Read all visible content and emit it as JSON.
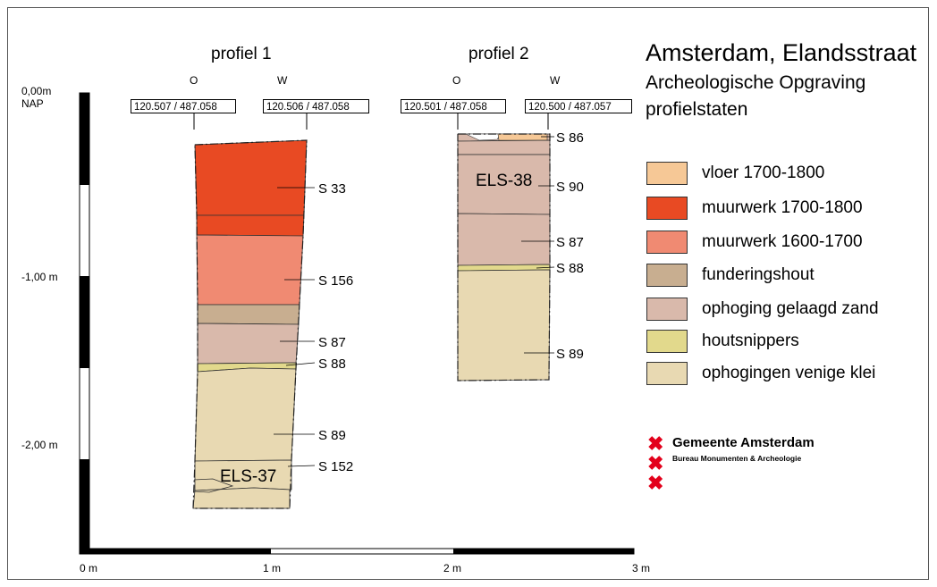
{
  "title": {
    "line1": "Amsterdam, Elandsstraat",
    "line2": "Archeologische Opgraving",
    "line3": "profielstaten"
  },
  "depth_scale": {
    "top_label": "0,00m",
    "top_sublabel": "NAP",
    "mid_label": "-1,00 m",
    "low_label": "-2,00 m"
  },
  "width_scale": {
    "labels": [
      "0 m",
      "1 m",
      "2 m",
      "3 m"
    ]
  },
  "profiles": [
    {
      "title": "profiel 1",
      "orientation_left": "O",
      "orientation_right": "W",
      "coord_left": "120.507 / 487.058",
      "coord_right": "120.506 / 487.058",
      "tag": "ELS-37",
      "labels": [
        "S 33",
        "S 156",
        "S 87",
        "S 88",
        "S 89",
        "S 152"
      ]
    },
    {
      "title": "profiel 2",
      "orientation_left": "O",
      "orientation_right": "W",
      "coord_left": "120.501 / 487.058",
      "coord_right": "120.500 / 487.057",
      "tag": "ELS-38",
      "labels": [
        "S 86",
        "S 90",
        "S 87",
        "S 88",
        "S 89"
      ]
    }
  ],
  "legend": [
    {
      "label": "vloer 1700-1800",
      "color": "#f6c896"
    },
    {
      "label": "muurwerk 1700-1800",
      "color": "#e84a23"
    },
    {
      "label": "muurwerk 1600-1700",
      "color": "#f08a72"
    },
    {
      "label": "funderingshout",
      "color": "#c8ae90"
    },
    {
      "label": "ophoging gelaagd zand",
      "color": "#d9b9ab"
    },
    {
      "label": "houtsnippers",
      "color": "#e2d98c"
    },
    {
      "label": "ophogingen venige klei",
      "color": "#e8d9b2"
    }
  ],
  "logo": {
    "name": "Gemeente Amsterdam",
    "department": "Bureau Monumenten & Archeologie",
    "mark_glyph": "✖",
    "mark_color": "#e3001b"
  }
}
